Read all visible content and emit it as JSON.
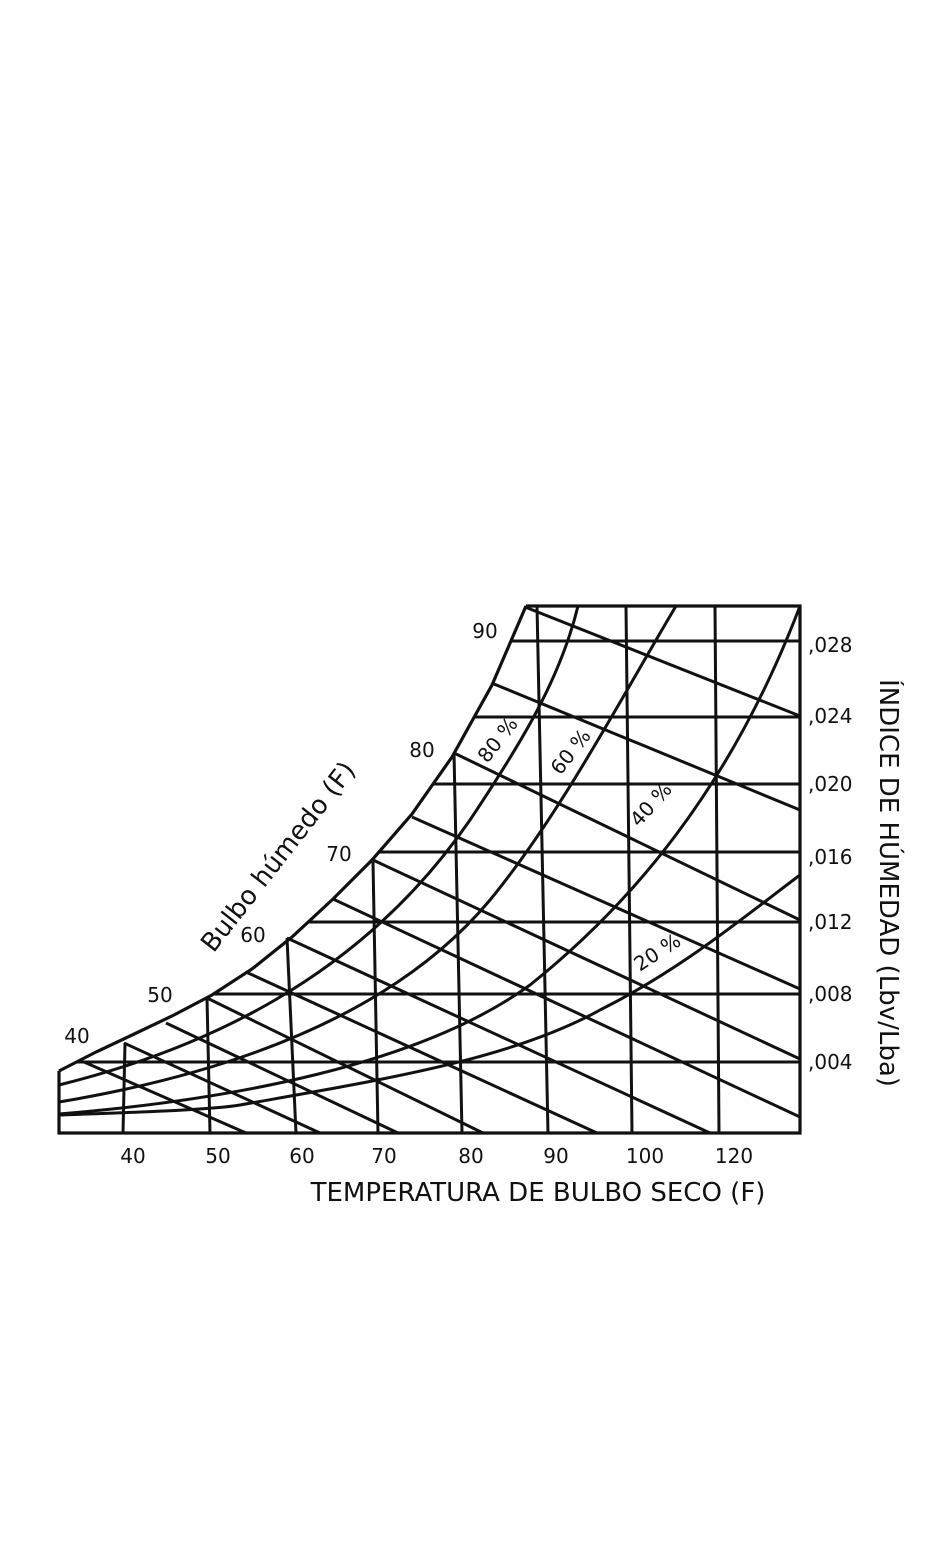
{
  "diagram": {
    "title": "",
    "x_axis": {
      "title": "TEMPERATURA DE BULBO SECO (F)",
      "ticks": [
        "40",
        "50",
        "60",
        "70",
        "80",
        "90",
        "100",
        "120"
      ]
    },
    "y_axis": {
      "title": "ÍNDICE DE HÚMEDAD (Lbv/Lba)",
      "ticks": [
        ",004",
        ",008",
        ",012",
        ",016",
        ",020",
        ",024",
        ",028"
      ]
    },
    "wet_bulb": {
      "title": "Bulbo húmedo (F)",
      "labels": [
        "40",
        "50",
        "60",
        "70",
        "80",
        "90"
      ]
    },
    "relative_humidity": {
      "labels": [
        "80 %",
        "60 %",
        "40 %",
        "20 %"
      ]
    },
    "line_color": "#111111",
    "background": "#ffffff"
  }
}
